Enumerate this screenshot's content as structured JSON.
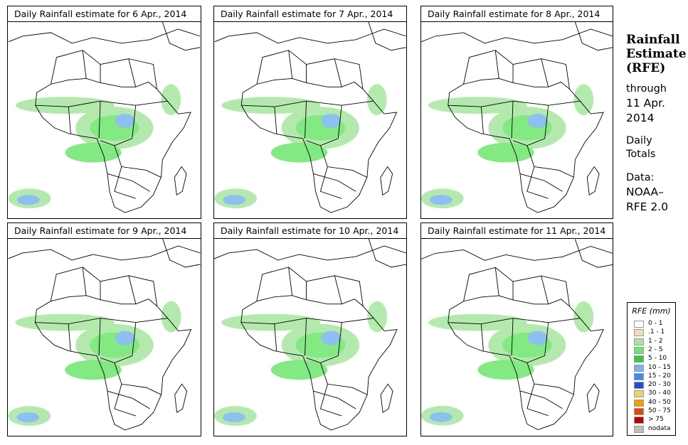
{
  "panels": [
    {
      "title": "Daily Rainfall estimate for  6 Apr., 2014"
    },
    {
      "title": "Daily Rainfall estimate for  7 Apr., 2014"
    },
    {
      "title": "Daily Rainfall estimate for  8 Apr., 2014"
    },
    {
      "title": "Daily Rainfall estimate for  9 Apr., 2014"
    },
    {
      "title": "Daily Rainfall estimate for  10 Apr., 2014"
    },
    {
      "title": "Daily Rainfall estimate for  11 Apr., 2014"
    }
  ],
  "side": {
    "heading1": "Rainfall",
    "heading2": "Estimate",
    "heading3": "(RFE)",
    "through": "through",
    "date1": "11 Apr.",
    "date2": "2014",
    "daily1": "Daily",
    "daily2": "Totals",
    "data_label": "Data:",
    "source1": "NOAA–",
    "source2": "RFE 2.0"
  },
  "legend": {
    "title": "RFE (mm)",
    "items": [
      {
        "label": "0 - 1",
        "color": "#ffffff"
      },
      {
        "label": ".1 - 1",
        "color": "#f0dcc0"
      },
      {
        "label": "1 - 2",
        "color": "#a8e6a0"
      },
      {
        "label": "2 - 5",
        "color": "#6ee66e"
      },
      {
        "label": "5 - 10",
        "color": "#3cc83c"
      },
      {
        "label": "10 - 15",
        "color": "#78b4f0"
      },
      {
        "label": "15 - 20",
        "color": "#3c8cf0"
      },
      {
        "label": "20 - 30",
        "color": "#1e50d2"
      },
      {
        "label": "30 - 40",
        "color": "#f0d264"
      },
      {
        "label": "40 - 50",
        "color": "#f0a000"
      },
      {
        "label": "50 - 75",
        "color": "#e64600"
      },
      {
        "label": "> 75",
        "color": "#b40000"
      },
      {
        "label": "nodata",
        "color": "#bebebe"
      }
    ]
  }
}
